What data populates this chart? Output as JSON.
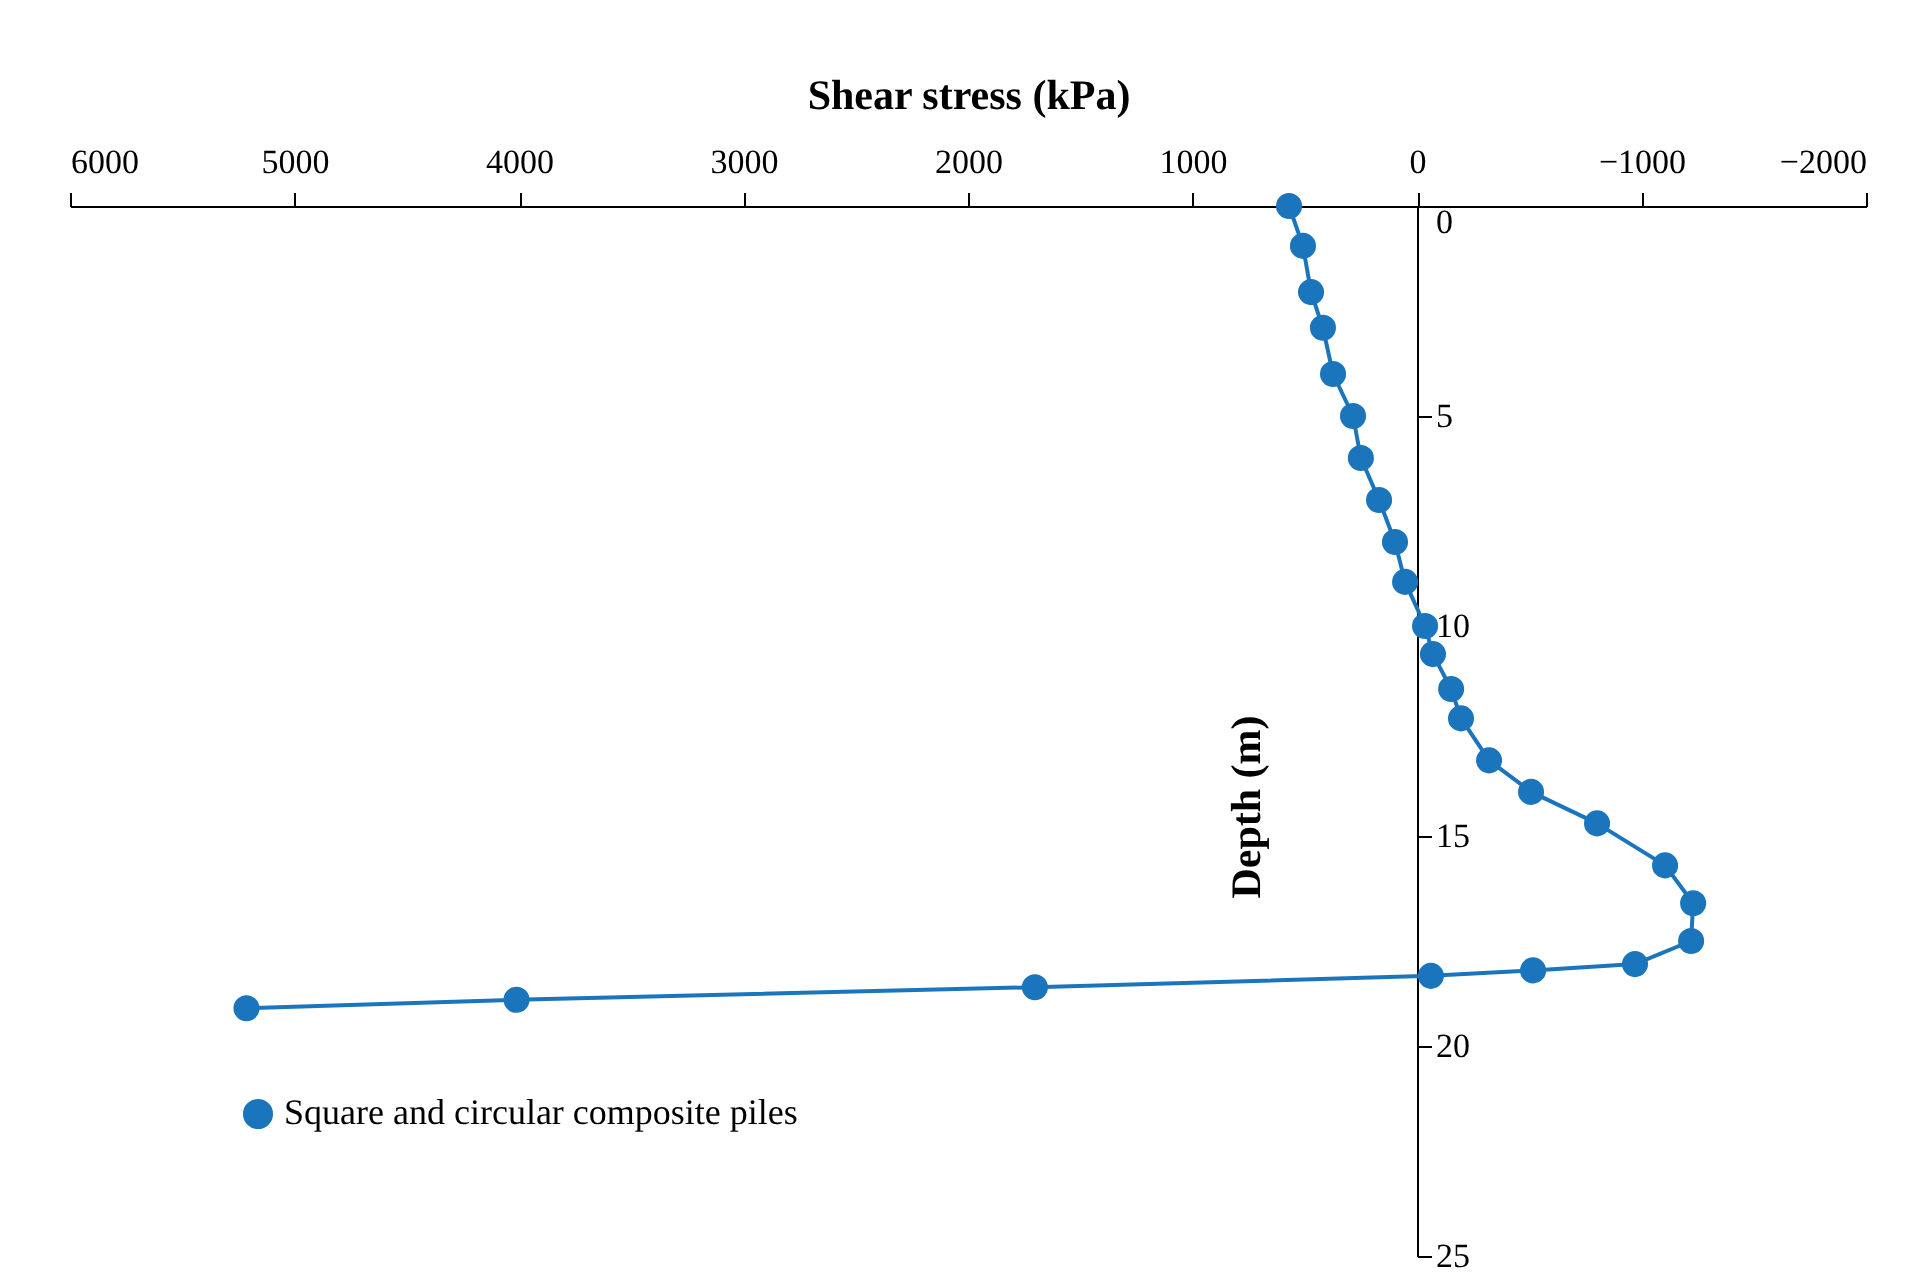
{
  "chart_data": {
    "type": "line",
    "xlabel": "Shear stress (kPa)",
    "ylabel": "Depth (m)",
    "xlim": [
      6000,
      -2000
    ],
    "xticks": [
      6000,
      5000,
      4000,
      3000,
      2000,
      1000,
      0,
      -1000,
      -2000
    ],
    "ylim": [
      25,
      0
    ],
    "yticks": [
      0,
      5,
      10,
      15,
      20,
      25
    ],
    "grid": false,
    "legend": "bottom left",
    "marker": "circle",
    "line_style": "solid",
    "series": [
      {
        "name": "Square and circular composite piles",
        "color": "#1b75bc",
        "x": [
          570,
          508,
          472,
          419,
          374,
          285,
          250,
          169,
          98,
          53,
          -36,
          -71,
          -152,
          -196,
          -321,
          -508,
          -802,
          -1105,
          -1230,
          -1221,
          -971,
          -517,
          -62,
          1702,
          4011,
          5214
        ],
        "values": [
          0,
          0.95,
          2.05,
          2.9,
          4,
          5,
          6,
          7,
          8,
          8.95,
          10,
          10.67,
          11.5,
          12.2,
          13.2,
          13.95,
          14.7,
          15.7,
          16.6,
          17.5,
          18.05,
          18.2,
          18.33,
          18.6,
          18.9,
          19.1
        ]
      }
    ]
  }
}
